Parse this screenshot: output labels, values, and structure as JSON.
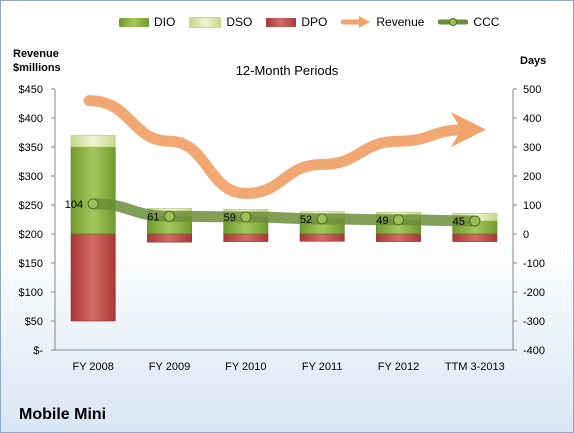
{
  "chart_data": {
    "type": "bar",
    "title": "12-Month Periods",
    "left_axis": {
      "label_line1": "Revenue",
      "label_line2": "$millions",
      "ylim": [
        0,
        450
      ],
      "ticks": [
        "$-",
        "$50",
        "$100",
        "$150",
        "$200",
        "$250",
        "$300",
        "$350",
        "$400",
        "$450"
      ]
    },
    "right_axis": {
      "label": "Days",
      "ylim": [
        -400,
        500
      ],
      "ticks": [
        "-400",
        "-300",
        "-200",
        "-100",
        "0",
        "100",
        "200",
        "300",
        "400",
        "500"
      ]
    },
    "categories": [
      "FY 2008",
      "FY 2009",
      "FY 2010",
      "FY 2011",
      "FY 2012",
      "TTM 3-2013"
    ],
    "series": [
      {
        "name": "DIO",
        "axis": "right",
        "values": [
          300,
          61,
          59,
          52,
          49,
          45
        ]
      },
      {
        "name": "DSO",
        "axis": "right",
        "values": [
          40,
          27,
          26,
          25,
          26,
          26
        ]
      },
      {
        "name": "DPO",
        "axis": "right",
        "values": [
          -300,
          -28,
          -26,
          -25,
          -26,
          -26
        ]
      },
      {
        "name": "Revenue",
        "axis": "left",
        "values": [
          430,
          360,
          270,
          320,
          360,
          380
        ]
      },
      {
        "name": "CCC",
        "axis": "right",
        "values": [
          104,
          61,
          59,
          52,
          49,
          45
        ]
      }
    ],
    "ccc_labels": [
      "104",
      "61",
      "59",
      "52",
      "49",
      "45"
    ],
    "colors": {
      "DIO": "#8db441",
      "DSO": "#d7e4a3",
      "DPO": "#c0504d",
      "Revenue": "#f79646",
      "CCC": "#6b8e3a"
    },
    "legend_position": "top",
    "grid": false
  },
  "company": "Mobile Mini"
}
